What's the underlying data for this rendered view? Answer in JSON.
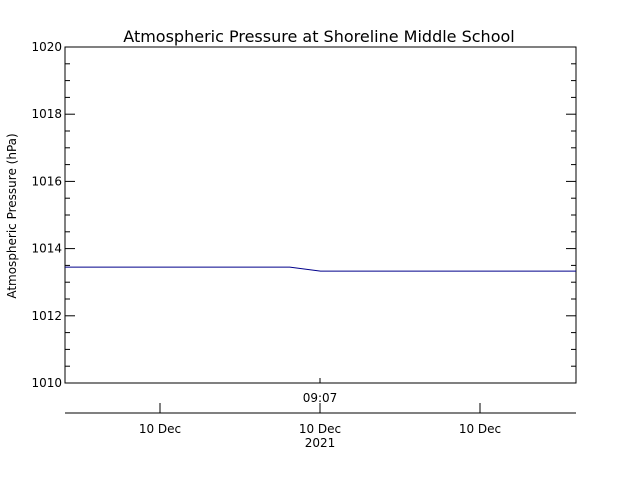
{
  "chart_data": {
    "type": "line",
    "title": "Atmospheric Pressure at Shoreline Middle School",
    "ylabel": "Atmospheric Pressure (hPa)",
    "ylim": [
      1010,
      1020
    ],
    "y_ticks": [
      1010,
      1012,
      1014,
      1016,
      1018,
      1020
    ],
    "top_axis_time_label": "09:07",
    "x_tick_labels": [
      "10 Dec",
      "10 Dec",
      "10 Dec"
    ],
    "x_year_label": "2021",
    "series": [
      {
        "color": "#00008b",
        "x": [
          0,
          0.44,
          0.5,
          1.0
        ],
        "values": [
          1013.45,
          1013.45,
          1013.33,
          1013.33
        ]
      }
    ],
    "grid": false,
    "legend": "none"
  }
}
